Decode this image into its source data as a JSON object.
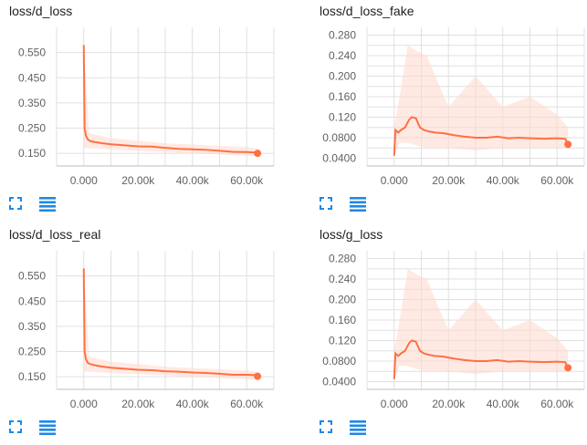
{
  "colors": {
    "accent": "#ff7043",
    "raw": "#ffd9cc",
    "icon": "#1e88e5"
  },
  "icons": {
    "expand": "expand-icon",
    "data_toggle": "data-toggle-icon"
  },
  "chart_data": [
    {
      "type": "line",
      "title": "loss/d_loss",
      "xlim": [
        -10000,
        70000
      ],
      "ylim": [
        0.1,
        0.65
      ],
      "xticks": [
        0,
        20000,
        40000,
        60000
      ],
      "xtick_labels": [
        "0.000",
        "20.00k",
        "40.00k",
        "60.00k"
      ],
      "yticks": [
        0.15,
        0.25,
        0.35,
        0.45,
        0.55
      ],
      "ytick_labels": [
        "0.150",
        "0.250",
        "0.350",
        "0.450",
        "0.550"
      ],
      "grid": true,
      "smoothed": {
        "x": [
          0,
          300,
          800,
          1500,
          2500,
          4000,
          7000,
          10000,
          15000,
          20000,
          25000,
          30000,
          35000,
          40000,
          45000,
          50000,
          55000,
          60000,
          63000,
          64000
        ],
        "y": [
          0.58,
          0.25,
          0.22,
          0.205,
          0.198,
          0.195,
          0.19,
          0.186,
          0.182,
          0.178,
          0.177,
          0.172,
          0.168,
          0.166,
          0.164,
          0.16,
          0.156,
          0.155,
          0.154,
          0.15
        ]
      },
      "raw_band": {
        "x": [
          0,
          2000,
          10000,
          20000,
          30000,
          40000,
          50000,
          60000,
          64000
        ],
        "low": [
          0.17,
          0.17,
          0.165,
          0.16,
          0.155,
          0.15,
          0.145,
          0.14,
          0.14
        ],
        "high": [
          0.58,
          0.23,
          0.21,
          0.2,
          0.19,
          0.185,
          0.18,
          0.175,
          0.17
        ]
      },
      "last_point": {
        "x": 64000,
        "y": 0.15
      }
    },
    {
      "type": "line",
      "title": "loss/d_loss_fake",
      "xlim": [
        -10000,
        70000
      ],
      "ylim": [
        0.025,
        0.295
      ],
      "xticks": [
        0,
        20000,
        40000,
        60000
      ],
      "xtick_labels": [
        "0.000",
        "20.00k",
        "40.00k",
        "60.00k"
      ],
      "yticks": [
        0.04,
        0.06,
        0.08,
        0.1,
        0.12,
        0.14,
        0.16,
        0.18,
        0.2,
        0.22,
        0.24,
        0.26,
        0.28
      ],
      "ytick_labels": [
        "0.0400",
        "",
        "0.0800",
        "",
        "0.120",
        "",
        "0.160",
        "",
        "0.200",
        "",
        "0.240",
        "",
        "0.280"
      ],
      "grid": true,
      "smoothed": {
        "x": [
          0,
          500,
          1500,
          2500,
          4000,
          5500,
          6500,
          8000,
          9500,
          11000,
          13000,
          15000,
          18000,
          22000,
          26000,
          30000,
          34000,
          38000,
          42000,
          46000,
          50000,
          55000,
          60000,
          63000,
          64000
        ],
        "y": [
          0.045,
          0.095,
          0.09,
          0.095,
          0.1,
          0.115,
          0.12,
          0.118,
          0.1,
          0.095,
          0.092,
          0.09,
          0.089,
          0.085,
          0.082,
          0.08,
          0.08,
          0.082,
          0.079,
          0.08,
          0.079,
          0.078,
          0.079,
          0.078,
          0.067
        ]
      },
      "raw_band": {
        "x": [
          0,
          2000,
          5000,
          8000,
          12000,
          20000,
          30000,
          40000,
          50000,
          60000,
          64000
        ],
        "low": [
          0.045,
          0.07,
          0.07,
          0.065,
          0.06,
          0.06,
          0.055,
          0.06,
          0.06,
          0.06,
          0.06
        ],
        "high": [
          0.1,
          0.16,
          0.26,
          0.25,
          0.24,
          0.14,
          0.2,
          0.14,
          0.16,
          0.125,
          0.1
        ]
      },
      "last_point": {
        "x": 64000,
        "y": 0.067
      }
    },
    {
      "type": "line",
      "title": "loss/d_loss_real",
      "xlim": [
        -10000,
        70000
      ],
      "ylim": [
        0.1,
        0.65
      ],
      "xticks": [
        0,
        20000,
        40000,
        60000
      ],
      "xtick_labels": [
        "0.000",
        "20.00k",
        "40.00k",
        "60.00k"
      ],
      "yticks": [
        0.15,
        0.25,
        0.35,
        0.45,
        0.55
      ],
      "ytick_labels": [
        "0.150",
        "0.250",
        "0.350",
        "0.450",
        "0.550"
      ],
      "grid": true,
      "smoothed": {
        "x": [
          0,
          300,
          800,
          1500,
          2500,
          4000,
          7000,
          10000,
          15000,
          20000,
          25000,
          30000,
          35000,
          40000,
          45000,
          50000,
          55000,
          60000,
          63000,
          64000
        ],
        "y": [
          0.58,
          0.25,
          0.22,
          0.205,
          0.2,
          0.196,
          0.19,
          0.186,
          0.182,
          0.178,
          0.176,
          0.172,
          0.17,
          0.167,
          0.165,
          0.162,
          0.158,
          0.158,
          0.157,
          0.152
        ]
      },
      "raw_band": {
        "x": [
          0,
          2000,
          10000,
          20000,
          30000,
          40000,
          50000,
          60000,
          64000
        ],
        "low": [
          0.17,
          0.17,
          0.165,
          0.16,
          0.155,
          0.15,
          0.145,
          0.14,
          0.14
        ],
        "high": [
          0.58,
          0.23,
          0.21,
          0.2,
          0.19,
          0.185,
          0.18,
          0.175,
          0.17
        ]
      },
      "last_point": {
        "x": 64000,
        "y": 0.152
      }
    },
    {
      "type": "line",
      "title": "loss/g_loss",
      "xlim": [
        -10000,
        70000
      ],
      "ylim": [
        0.025,
        0.295
      ],
      "xticks": [
        0,
        20000,
        40000,
        60000
      ],
      "xtick_labels": [
        "0.000",
        "20.00k",
        "40.00k",
        "60.00k"
      ],
      "yticks": [
        0.04,
        0.06,
        0.08,
        0.1,
        0.12,
        0.14,
        0.16,
        0.18,
        0.2,
        0.22,
        0.24,
        0.26,
        0.28
      ],
      "ytick_labels": [
        "0.0400",
        "",
        "0.0800",
        "",
        "0.120",
        "",
        "0.160",
        "",
        "0.200",
        "",
        "0.240",
        "",
        "0.280"
      ],
      "grid": true,
      "smoothed": {
        "x": [
          0,
          500,
          1500,
          2500,
          4000,
          5500,
          6500,
          8000,
          9500,
          11000,
          13000,
          15000,
          18000,
          22000,
          26000,
          30000,
          34000,
          38000,
          42000,
          46000,
          50000,
          55000,
          60000,
          63000,
          64000
        ],
        "y": [
          0.045,
          0.095,
          0.09,
          0.095,
          0.1,
          0.115,
          0.12,
          0.118,
          0.1,
          0.095,
          0.092,
          0.09,
          0.089,
          0.085,
          0.082,
          0.08,
          0.08,
          0.082,
          0.079,
          0.08,
          0.079,
          0.078,
          0.079,
          0.078,
          0.067
        ]
      },
      "raw_band": {
        "x": [
          0,
          2000,
          5000,
          8000,
          12000,
          20000,
          30000,
          40000,
          50000,
          60000,
          64000
        ],
        "low": [
          0.045,
          0.07,
          0.07,
          0.065,
          0.06,
          0.06,
          0.055,
          0.06,
          0.06,
          0.06,
          0.06
        ],
        "high": [
          0.1,
          0.16,
          0.26,
          0.25,
          0.24,
          0.14,
          0.2,
          0.14,
          0.16,
          0.125,
          0.1
        ]
      },
      "last_point": {
        "x": 64000,
        "y": 0.067
      }
    }
  ]
}
